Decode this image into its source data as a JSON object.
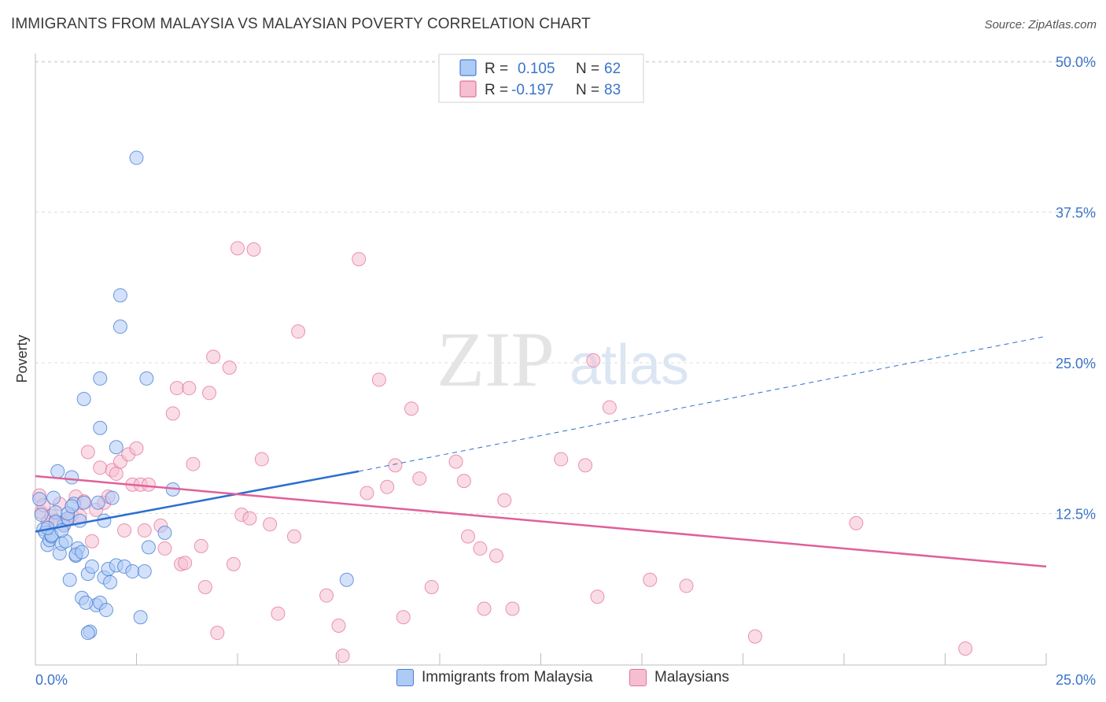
{
  "title": "IMMIGRANTS FROM MALAYSIA VS MALAYSIAN POVERTY CORRELATION CHART",
  "source": "Source: ZipAtlas.com",
  "watermark": {
    "zip": "ZIP",
    "atlas": "atlas"
  },
  "colors": {
    "blue": "#4a7fd4",
    "blue_fill": "#aecbf5",
    "blue_line": "#2b6fd0",
    "pink": "#e3729a",
    "pink_fill": "#f6bfd1",
    "pink_line": "#e0609a",
    "axis_label": "#3b74c9"
  },
  "legend": {
    "rows": [
      {
        "r_label": "R =",
        "r_value": "0.105",
        "n_label": "N =",
        "n_value": "62"
      },
      {
        "r_label": "R =",
        "r_value": "-0.197",
        "n_label": "N =",
        "n_value": "83"
      }
    ]
  },
  "bottom_legend": {
    "series1": "Immigrants from Malaysia",
    "series2": "Malaysians"
  },
  "chart_data": {
    "type": "scatter",
    "title": "IMMIGRANTS FROM MALAYSIA VS MALAYSIAN POVERTY CORRELATION CHART",
    "xlabel": "",
    "ylabel": "Poverty",
    "xlim": [
      0,
      25
    ],
    "ylim": [
      0,
      50
    ],
    "x_tick_labels": [
      "0.0%",
      "25.0%"
    ],
    "y_ticks": [
      12.5,
      25.0,
      37.5,
      50.0
    ],
    "y_tick_labels": [
      "12.5%",
      "25.0%",
      "37.5%",
      "50.0%"
    ],
    "grid": true,
    "legend_position": "top-center",
    "series": [
      {
        "name": "Immigrants from Malaysia",
        "R": 0.105,
        "N": 62,
        "trend": {
          "x": [
            0,
            8
          ],
          "y": [
            11.0,
            16.0
          ],
          "dashed_extension_to": [
            25,
            27.2
          ]
        },
        "points": [
          [
            0.1,
            13.7
          ],
          [
            0.15,
            12.4
          ],
          [
            0.2,
            11.2
          ],
          [
            0.25,
            10.9
          ],
          [
            0.3,
            9.9
          ],
          [
            0.35,
            10.3
          ],
          [
            0.4,
            10.6
          ],
          [
            0.45,
            13.8
          ],
          [
            0.5,
            12.6
          ],
          [
            0.55,
            16.0
          ],
          [
            0.6,
            9.2
          ],
          [
            0.65,
            10.0
          ],
          [
            0.7,
            11.5
          ],
          [
            0.75,
            10.2
          ],
          [
            0.8,
            12.1
          ],
          [
            0.85,
            7.0
          ],
          [
            0.9,
            15.5
          ],
          [
            0.95,
            13.3
          ],
          [
            1.0,
            9.0
          ],
          [
            1.05,
            9.6
          ],
          [
            1.1,
            11.9
          ],
          [
            1.15,
            5.5
          ],
          [
            1.2,
            13.4
          ],
          [
            1.3,
            7.5
          ],
          [
            1.35,
            2.7
          ],
          [
            1.4,
            8.1
          ],
          [
            1.5,
            4.9
          ],
          [
            1.55,
            13.4
          ],
          [
            1.6,
            5.1
          ],
          [
            1.7,
            7.2
          ],
          [
            1.75,
            4.5
          ],
          [
            1.8,
            7.9
          ],
          [
            1.85,
            6.8
          ],
          [
            1.2,
            22.0
          ],
          [
            1.3,
            2.6
          ],
          [
            1.25,
            5.1
          ],
          [
            1.7,
            11.9
          ],
          [
            1.9,
            13.8
          ],
          [
            2.0,
            8.2
          ],
          [
            2.1,
            28.0
          ],
          [
            2.2,
            8.1
          ],
          [
            2.4,
            7.7
          ],
          [
            2.5,
            42.0
          ],
          [
            2.6,
            3.9
          ],
          [
            2.1,
            30.6
          ],
          [
            2.0,
            18.0
          ],
          [
            2.8,
            9.7
          ],
          [
            2.7,
            7.7
          ],
          [
            3.2,
            10.9
          ],
          [
            3.4,
            14.5
          ],
          [
            7.7,
            7.0
          ],
          [
            0.5,
            11.8
          ],
          [
            0.8,
            12.5
          ],
          [
            1.0,
            9.1
          ],
          [
            0.4,
            10.7
          ],
          [
            0.9,
            13.1
          ],
          [
            1.6,
            19.6
          ],
          [
            1.6,
            23.7
          ],
          [
            2.75,
            23.7
          ],
          [
            0.3,
            11.3
          ],
          [
            0.65,
            11.1
          ],
          [
            1.15,
            9.3
          ]
        ]
      },
      {
        "name": "Malaysians",
        "R": -0.197,
        "N": 83,
        "trend": {
          "x": [
            0,
            25
          ],
          "y": [
            15.6,
            8.1
          ]
        },
        "points": [
          [
            0.1,
            14.0
          ],
          [
            0.15,
            12.6
          ],
          [
            0.2,
            13.2
          ],
          [
            0.3,
            11.8
          ],
          [
            0.4,
            12.3
          ],
          [
            0.5,
            11.9
          ],
          [
            0.6,
            13.3
          ],
          [
            0.7,
            11.6
          ],
          [
            0.8,
            12.0
          ],
          [
            0.9,
            12.4
          ],
          [
            1.0,
            13.9
          ],
          [
            1.1,
            12.3
          ],
          [
            1.2,
            13.5
          ],
          [
            1.3,
            17.6
          ],
          [
            1.4,
            10.2
          ],
          [
            1.5,
            12.8
          ],
          [
            1.6,
            16.3
          ],
          [
            1.7,
            13.4
          ],
          [
            1.8,
            13.9
          ],
          [
            1.9,
            16.1
          ],
          [
            2.0,
            15.8
          ],
          [
            2.1,
            16.8
          ],
          [
            2.2,
            11.1
          ],
          [
            2.3,
            17.4
          ],
          [
            2.4,
            14.9
          ],
          [
            2.5,
            17.9
          ],
          [
            2.6,
            14.9
          ],
          [
            2.7,
            11.1
          ],
          [
            2.8,
            14.9
          ],
          [
            3.1,
            11.5
          ],
          [
            3.2,
            9.6
          ],
          [
            3.4,
            20.8
          ],
          [
            3.5,
            22.9
          ],
          [
            3.6,
            8.3
          ],
          [
            3.7,
            8.4
          ],
          [
            3.8,
            22.9
          ],
          [
            3.9,
            16.6
          ],
          [
            4.1,
            9.8
          ],
          [
            4.2,
            6.4
          ],
          [
            4.3,
            22.5
          ],
          [
            4.4,
            25.5
          ],
          [
            4.5,
            2.6
          ],
          [
            4.8,
            24.6
          ],
          [
            4.9,
            8.3
          ],
          [
            5.0,
            34.5
          ],
          [
            5.1,
            12.4
          ],
          [
            5.3,
            12.1
          ],
          [
            5.4,
            34.4
          ],
          [
            5.6,
            17.0
          ],
          [
            5.8,
            11.6
          ],
          [
            6.0,
            4.2
          ],
          [
            6.4,
            10.6
          ],
          [
            6.5,
            27.6
          ],
          [
            7.2,
            5.7
          ],
          [
            7.5,
            3.2
          ],
          [
            7.6,
            0.7
          ],
          [
            8.0,
            33.6
          ],
          [
            8.2,
            14.2
          ],
          [
            8.5,
            23.6
          ],
          [
            8.7,
            14.7
          ],
          [
            8.9,
            16.5
          ],
          [
            9.1,
            3.9
          ],
          [
            9.3,
            21.2
          ],
          [
            9.5,
            15.4
          ],
          [
            9.8,
            6.4
          ],
          [
            10.4,
            16.8
          ],
          [
            10.6,
            15.2
          ],
          [
            10.7,
            10.6
          ],
          [
            11.0,
            9.6
          ],
          [
            11.1,
            4.6
          ],
          [
            11.4,
            9.0
          ],
          [
            11.6,
            13.6
          ],
          [
            11.8,
            4.6
          ],
          [
            13.0,
            17.0
          ],
          [
            13.6,
            16.5
          ],
          [
            13.9,
            5.6
          ],
          [
            14.2,
            21.3
          ],
          [
            15.2,
            7.0
          ],
          [
            16.1,
            6.5
          ],
          [
            17.8,
            2.3
          ],
          [
            20.3,
            11.7
          ],
          [
            23.0,
            1.3
          ],
          [
            13.8,
            25.2
          ]
        ]
      }
    ]
  }
}
